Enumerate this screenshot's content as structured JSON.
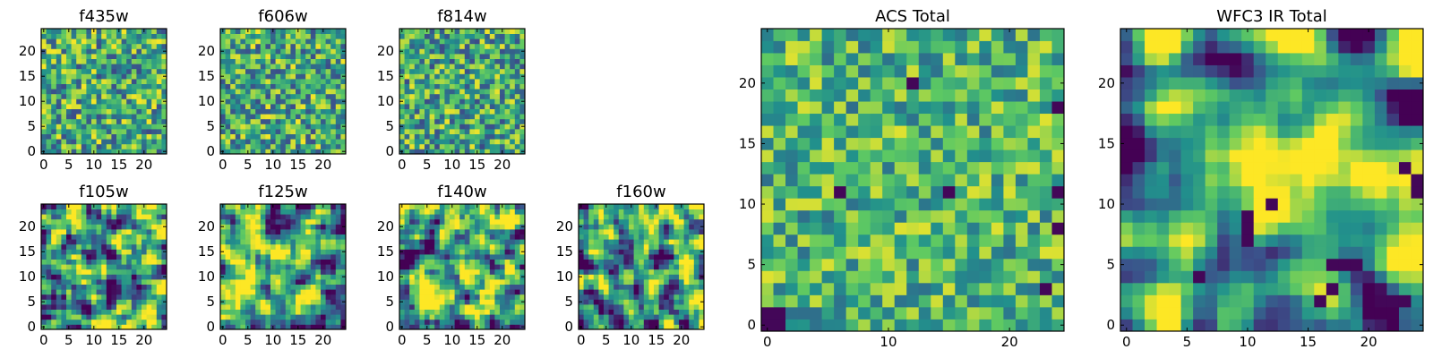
{
  "chart_data": [
    {
      "type": "heatmap",
      "title": "f435w",
      "grid_size": [
        25,
        25
      ],
      "xlim": [
        -0.5,
        24.5
      ],
      "ylim": [
        -0.5,
        24.5
      ],
      "xticks": [
        0,
        5,
        10,
        15,
        20
      ],
      "yticks": [
        0,
        5,
        10,
        15,
        20
      ],
      "colormap": [
        "#440154",
        "#3b528b",
        "#21918c",
        "#5ec962",
        "#fde725"
      ],
      "texture": {
        "seed": 11,
        "smooth": 0,
        "mean": 0.62,
        "contrast": 0.22
      }
    },
    {
      "type": "heatmap",
      "title": "f606w",
      "grid_size": [
        25,
        25
      ],
      "xlim": [
        -0.5,
        24.5
      ],
      "ylim": [
        -0.5,
        24.5
      ],
      "xticks": [
        0,
        5,
        10,
        15,
        20
      ],
      "yticks": [
        0,
        5,
        10,
        15,
        20
      ],
      "colormap": [
        "#440154",
        "#3b528b",
        "#21918c",
        "#5ec962",
        "#fde725"
      ],
      "texture": {
        "seed": 23,
        "smooth": 0,
        "mean": 0.6,
        "contrast": 0.22
      }
    },
    {
      "type": "heatmap",
      "title": "f814w",
      "grid_size": [
        25,
        25
      ],
      "xlim": [
        -0.5,
        24.5
      ],
      "ylim": [
        -0.5,
        24.5
      ],
      "xticks": [
        0,
        5,
        10,
        15,
        20
      ],
      "yticks": [
        0,
        5,
        10,
        15,
        20
      ],
      "colormap": [
        "#440154",
        "#3b528b",
        "#21918c",
        "#5ec962",
        "#fde725"
      ],
      "texture": {
        "seed": 37,
        "smooth": 0,
        "mean": 0.6,
        "contrast": 0.22
      }
    },
    {
      "type": "heatmap",
      "title": "f105w",
      "grid_size": [
        25,
        25
      ],
      "xlim": [
        -0.5,
        24.5
      ],
      "ylim": [
        -0.5,
        24.5
      ],
      "xticks": [
        0,
        5,
        10,
        15,
        20
      ],
      "yticks": [
        0,
        5,
        10,
        15,
        20
      ],
      "colormap": [
        "#440154",
        "#3b528b",
        "#21918c",
        "#5ec962",
        "#fde725"
      ],
      "texture": {
        "seed": 41,
        "smooth": 1,
        "mean": 0.56,
        "contrast": 0.32
      }
    },
    {
      "type": "heatmap",
      "title": "f125w",
      "grid_size": [
        25,
        25
      ],
      "xlim": [
        -0.5,
        24.5
      ],
      "ylim": [
        -0.5,
        24.5
      ],
      "xticks": [
        0,
        5,
        10,
        15,
        20
      ],
      "yticks": [
        0,
        5,
        10,
        15,
        20
      ],
      "colormap": [
        "#440154",
        "#3b528b",
        "#21918c",
        "#5ec962",
        "#fde725"
      ],
      "texture": {
        "seed": 53,
        "smooth": 1,
        "mean": 0.58,
        "contrast": 0.32
      }
    },
    {
      "type": "heatmap",
      "title": "f140w",
      "grid_size": [
        25,
        25
      ],
      "xlim": [
        -0.5,
        24.5
      ],
      "ylim": [
        -0.5,
        24.5
      ],
      "xticks": [
        0,
        5,
        10,
        15,
        20
      ],
      "yticks": [
        0,
        5,
        10,
        15,
        20
      ],
      "colormap": [
        "#440154",
        "#3b528b",
        "#21918c",
        "#5ec962",
        "#fde725"
      ],
      "texture": {
        "seed": 67,
        "smooth": 1,
        "mean": 0.6,
        "contrast": 0.32
      }
    },
    {
      "type": "heatmap",
      "title": "f160w",
      "grid_size": [
        25,
        25
      ],
      "xlim": [
        -0.5,
        24.5
      ],
      "ylim": [
        -0.5,
        24.5
      ],
      "xticks": [
        0,
        5,
        10,
        15,
        20
      ],
      "yticks": [
        0,
        5,
        10,
        15,
        20
      ],
      "colormap": [
        "#440154",
        "#3b528b",
        "#21918c",
        "#5ec962",
        "#fde725"
      ],
      "texture": {
        "seed": 79,
        "smooth": 1,
        "mean": 0.55,
        "contrast": 0.32
      }
    },
    {
      "type": "heatmap",
      "title": "ACS Total",
      "grid_size": [
        25,
        25
      ],
      "xlim": [
        -0.5,
        24.5
      ],
      "ylim": [
        -0.5,
        24.5
      ],
      "xticks": [
        0,
        10,
        20
      ],
      "yticks": [
        0,
        5,
        10,
        15,
        20
      ],
      "colormap": [
        "#440154",
        "#3b528b",
        "#21918c",
        "#5ec962",
        "#fde725"
      ],
      "texture": {
        "seed": 97,
        "smooth": 0,
        "mean": 0.66,
        "contrast": 0.18
      },
      "dark_cells": [
        [
          0,
          0
        ],
        [
          1,
          0
        ],
        [
          0,
          1
        ],
        [
          1,
          1
        ],
        [
          6,
          11
        ],
        [
          15,
          11
        ],
        [
          24,
          8
        ],
        [
          24,
          11
        ],
        [
          23,
          3
        ],
        [
          12,
          20
        ],
        [
          24,
          18
        ]
      ]
    },
    {
      "type": "heatmap",
      "title": "WFC3 IR Total",
      "grid_size": [
        25,
        25
      ],
      "xlim": [
        -0.5,
        24.5
      ],
      "ylim": [
        -0.5,
        24.5
      ],
      "xticks": [
        0,
        5,
        10,
        15,
        20
      ],
      "yticks": [
        0,
        5,
        10,
        15,
        20
      ],
      "colormap": [
        "#440154",
        "#3b528b",
        "#21918c",
        "#5ec962",
        "#fde725"
      ],
      "texture": {
        "seed": 113,
        "smooth": 2,
        "mean": 0.55,
        "contrast": 0.3
      },
      "bright_spot": {
        "cx": 13.5,
        "cy": 13,
        "r": 4.2,
        "amp": 0.32
      },
      "dark_cells": [
        [
          10,
          8
        ],
        [
          10,
          9
        ],
        [
          10,
          7
        ],
        [
          17,
          5
        ],
        [
          18,
          5
        ],
        [
          19,
          5
        ],
        [
          17,
          3
        ],
        [
          16,
          2
        ],
        [
          21,
          2
        ],
        [
          22,
          2
        ],
        [
          23,
          2
        ],
        [
          24,
          12
        ],
        [
          23,
          13
        ],
        [
          24,
          11
        ],
        [
          6,
          4
        ],
        [
          12,
          10
        ]
      ]
    }
  ]
}
